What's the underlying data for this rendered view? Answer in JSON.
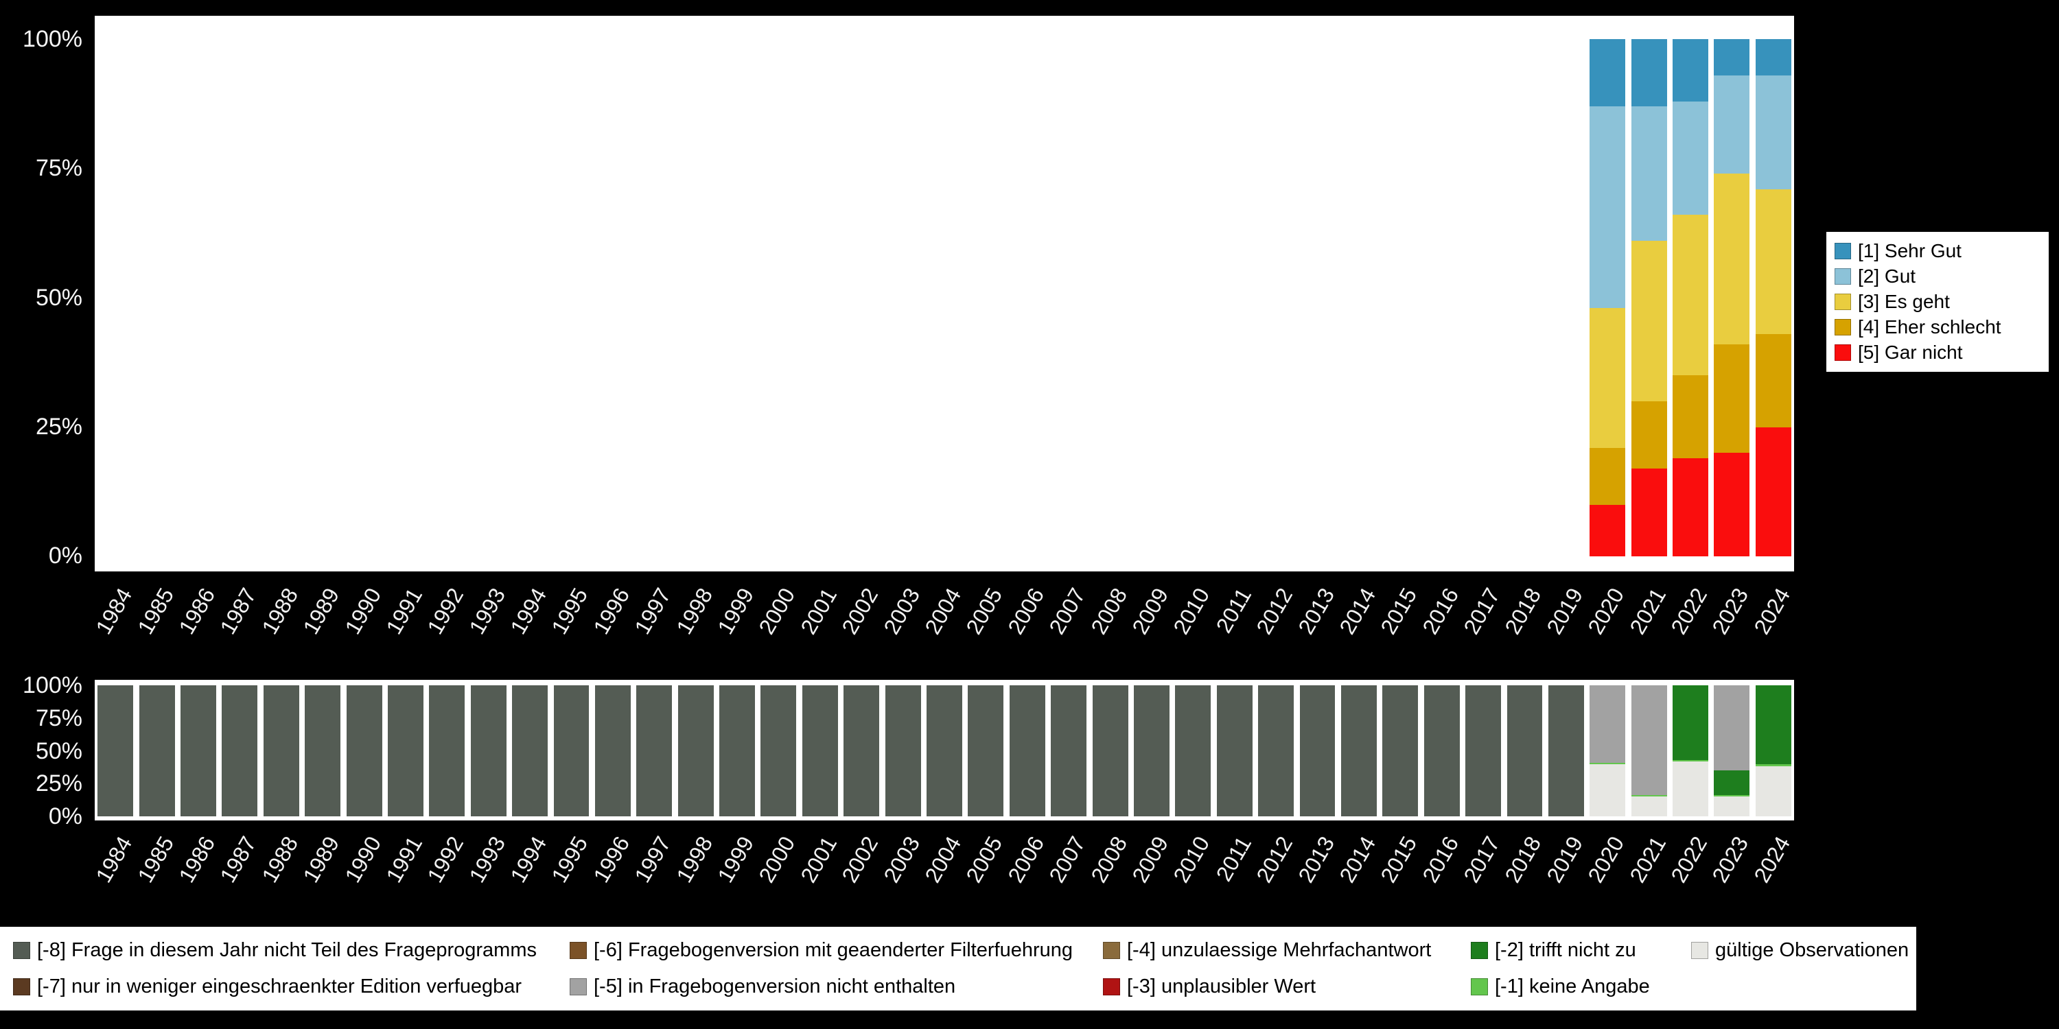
{
  "background": "#000000",
  "plot_background": "#ffffff",
  "chart_data": [
    {
      "id": "responses",
      "type": "bar",
      "stacked": true,
      "orientation": "vertical",
      "ylim": [
        0,
        100
      ],
      "grid": false,
      "y_ticks": [
        "100%",
        "75%",
        "50%",
        "25%",
        "0%"
      ],
      "categories": [
        "1984",
        "1985",
        "1986",
        "1987",
        "1988",
        "1989",
        "1990",
        "1991",
        "1992",
        "1993",
        "1994",
        "1995",
        "1996",
        "1997",
        "1998",
        "1999",
        "2000",
        "2001",
        "2002",
        "2003",
        "2004",
        "2005",
        "2006",
        "2007",
        "2008",
        "2009",
        "2010",
        "2011",
        "2012",
        "2013",
        "2014",
        "2015",
        "2016",
        "2017",
        "2018",
        "2019",
        "2020",
        "2021",
        "2022",
        "2023",
        "2024"
      ],
      "series": [
        {
          "name": "[5] Gar nicht",
          "color": "#fa0d0d",
          "values": [
            0,
            0,
            0,
            0,
            0,
            0,
            0,
            0,
            0,
            0,
            0,
            0,
            0,
            0,
            0,
            0,
            0,
            0,
            0,
            0,
            0,
            0,
            0,
            0,
            0,
            0,
            0,
            0,
            0,
            0,
            0,
            0,
            0,
            0,
            0,
            0,
            10,
            17,
            19,
            20,
            25
          ]
        },
        {
          "name": "[4] Eher schlecht",
          "color": "#d6a200",
          "values": [
            0,
            0,
            0,
            0,
            0,
            0,
            0,
            0,
            0,
            0,
            0,
            0,
            0,
            0,
            0,
            0,
            0,
            0,
            0,
            0,
            0,
            0,
            0,
            0,
            0,
            0,
            0,
            0,
            0,
            0,
            0,
            0,
            0,
            0,
            0,
            0,
            11,
            13,
            16,
            21,
            18
          ]
        },
        {
          "name": "[3] Es geht",
          "color": "#e9cd3f",
          "values": [
            0,
            0,
            0,
            0,
            0,
            0,
            0,
            0,
            0,
            0,
            0,
            0,
            0,
            0,
            0,
            0,
            0,
            0,
            0,
            0,
            0,
            0,
            0,
            0,
            0,
            0,
            0,
            0,
            0,
            0,
            0,
            0,
            0,
            0,
            0,
            0,
            27,
            31,
            31,
            33,
            28
          ]
        },
        {
          "name": "[2] Gut",
          "color": "#8cc2d8",
          "values": [
            0,
            0,
            0,
            0,
            0,
            0,
            0,
            0,
            0,
            0,
            0,
            0,
            0,
            0,
            0,
            0,
            0,
            0,
            0,
            0,
            0,
            0,
            0,
            0,
            0,
            0,
            0,
            0,
            0,
            0,
            0,
            0,
            0,
            0,
            0,
            0,
            39,
            26,
            22,
            19,
            22
          ]
        },
        {
          "name": "[1] Sehr Gut",
          "color": "#3792bc",
          "values": [
            0,
            0,
            0,
            0,
            0,
            0,
            0,
            0,
            0,
            0,
            0,
            0,
            0,
            0,
            0,
            0,
            0,
            0,
            0,
            0,
            0,
            0,
            0,
            0,
            0,
            0,
            0,
            0,
            0,
            0,
            0,
            0,
            0,
            0,
            0,
            0,
            13,
            13,
            12,
            7,
            7
          ]
        }
      ],
      "legend": {
        "position": "right",
        "order": [
          "[1] Sehr Gut",
          "[2] Gut",
          "[3] Es geht",
          "[4] Eher schlecht",
          "[5] Gar nicht"
        ]
      }
    },
    {
      "id": "missings",
      "type": "bar",
      "stacked": true,
      "orientation": "vertical",
      "ylim": [
        0,
        100
      ],
      "grid": false,
      "y_ticks": [
        "100%",
        "75%",
        "50%",
        "25%",
        "0%"
      ],
      "categories": [
        "1984",
        "1985",
        "1986",
        "1987",
        "1988",
        "1989",
        "1990",
        "1991",
        "1992",
        "1993",
        "1994",
        "1995",
        "1996",
        "1997",
        "1998",
        "1999",
        "2000",
        "2001",
        "2002",
        "2003",
        "2004",
        "2005",
        "2006",
        "2007",
        "2008",
        "2009",
        "2010",
        "2011",
        "2012",
        "2013",
        "2014",
        "2015",
        "2016",
        "2017",
        "2018",
        "2019",
        "2020",
        "2021",
        "2022",
        "2023",
        "2024"
      ],
      "series": [
        {
          "name": "gültige Observationen",
          "color": "#e7e7e3",
          "values": [
            0,
            0,
            0,
            0,
            0,
            0,
            0,
            0,
            0,
            0,
            0,
            0,
            0,
            0,
            0,
            0,
            0,
            0,
            0,
            0,
            0,
            0,
            0,
            0,
            0,
            0,
            0,
            0,
            0,
            0,
            0,
            0,
            0,
            0,
            0,
            0,
            40,
            15,
            42,
            15,
            38
          ]
        },
        {
          "name": "[-1] keine Angabe",
          "color": "#63c64d",
          "values": [
            0,
            0,
            0,
            0,
            0,
            0,
            0,
            0,
            0,
            0,
            0,
            0,
            0,
            0,
            0,
            0,
            0,
            0,
            0,
            0,
            0,
            0,
            0,
            0,
            0,
            0,
            0,
            0,
            0,
            0,
            0,
            0,
            0,
            0,
            0,
            0,
            1,
            1,
            1,
            1,
            2
          ]
        },
        {
          "name": "[-2] trifft nicht zu",
          "color": "#1e7e1e",
          "values": [
            0,
            0,
            0,
            0,
            0,
            0,
            0,
            0,
            0,
            0,
            0,
            0,
            0,
            0,
            0,
            0,
            0,
            0,
            0,
            0,
            0,
            0,
            0,
            0,
            0,
            0,
            0,
            0,
            0,
            0,
            0,
            0,
            0,
            0,
            0,
            0,
            0,
            0,
            57,
            19,
            60
          ]
        },
        {
          "name": "[-3] unplausibler Wert",
          "color": "#b01313",
          "values": [
            0,
            0,
            0,
            0,
            0,
            0,
            0,
            0,
            0,
            0,
            0,
            0,
            0,
            0,
            0,
            0,
            0,
            0,
            0,
            0,
            0,
            0,
            0,
            0,
            0,
            0,
            0,
            0,
            0,
            0,
            0,
            0,
            0,
            0,
            0,
            0,
            0,
            0,
            0,
            0,
            0
          ]
        },
        {
          "name": "[-4] unzulaessige Mehrfachantwort",
          "color": "#8a6b3c",
          "values": [
            0,
            0,
            0,
            0,
            0,
            0,
            0,
            0,
            0,
            0,
            0,
            0,
            0,
            0,
            0,
            0,
            0,
            0,
            0,
            0,
            0,
            0,
            0,
            0,
            0,
            0,
            0,
            0,
            0,
            0,
            0,
            0,
            0,
            0,
            0,
            0,
            0,
            0,
            0,
            0,
            0
          ]
        },
        {
          "name": "[-5] in Fragebogenversion nicht enthalten",
          "color": "#a2a2a2",
          "values": [
            0,
            0,
            0,
            0,
            0,
            0,
            0,
            0,
            0,
            0,
            0,
            0,
            0,
            0,
            0,
            0,
            0,
            0,
            0,
            0,
            0,
            0,
            0,
            0,
            0,
            0,
            0,
            0,
            0,
            0,
            0,
            0,
            0,
            0,
            0,
            0,
            59,
            84,
            0,
            65,
            0
          ]
        },
        {
          "name": "[-6] Fragebogenversion mit geaenderter Filterfuehrung",
          "color": "#7b5228",
          "values": [
            0,
            0,
            0,
            0,
            0,
            0,
            0,
            0,
            0,
            0,
            0,
            0,
            0,
            0,
            0,
            0,
            0,
            0,
            0,
            0,
            0,
            0,
            0,
            0,
            0,
            0,
            0,
            0,
            0,
            0,
            0,
            0,
            0,
            0,
            0,
            0,
            0,
            0,
            0,
            0,
            0
          ]
        },
        {
          "name": "[-7] nur in weniger eingeschraenkter Edition verfuegbar",
          "color": "#5b3a21",
          "values": [
            0,
            0,
            0,
            0,
            0,
            0,
            0,
            0,
            0,
            0,
            0,
            0,
            0,
            0,
            0,
            0,
            0,
            0,
            0,
            0,
            0,
            0,
            0,
            0,
            0,
            0,
            0,
            0,
            0,
            0,
            0,
            0,
            0,
            0,
            0,
            0,
            0,
            0,
            0,
            0,
            0
          ]
        },
        {
          "name": "[-8] Frage in diesem Jahr nicht Teil des Frageprogramms",
          "color": "#545c54",
          "values": [
            100,
            100,
            100,
            100,
            100,
            100,
            100,
            100,
            100,
            100,
            100,
            100,
            100,
            100,
            100,
            100,
            100,
            100,
            100,
            100,
            100,
            100,
            100,
            100,
            100,
            100,
            100,
            100,
            100,
            100,
            100,
            100,
            100,
            100,
            100,
            100,
            0,
            0,
            0,
            0,
            0
          ]
        }
      ],
      "legend": {
        "position": "bottom",
        "order": [
          "[-8] Frage in diesem Jahr nicht Teil des Frageprogramms",
          "[-7] nur in weniger eingeschraenkter Edition verfuegbar",
          "[-6] Fragebogenversion mit geaenderter Filterfuehrung",
          "[-5] in Fragebogenversion nicht enthalten",
          "[-4] unzulaessige Mehrfachantwort",
          "[-3] unplausibler Wert",
          "[-2] trifft nicht zu",
          "[-1] keine Angabe",
          "gültige Observationen"
        ]
      }
    }
  ]
}
